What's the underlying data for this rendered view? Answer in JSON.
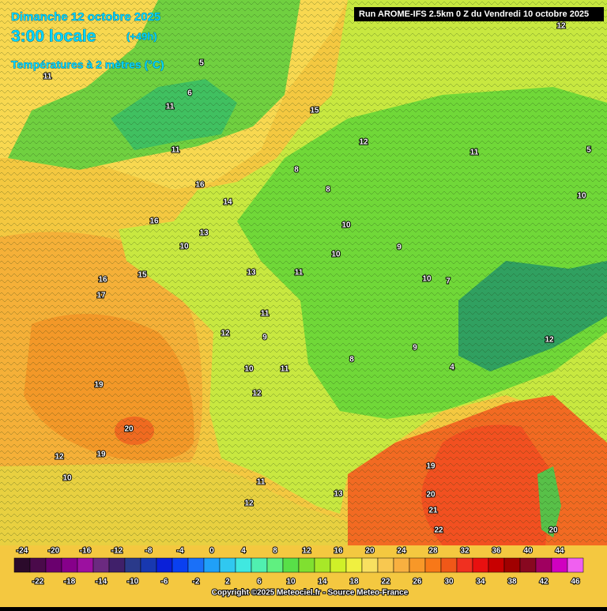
{
  "header": {
    "date": "Dimanche 12 octobre 2025",
    "time": "3:00 locale",
    "lead": "(+49h)",
    "parameter": "Températures à 2 mètres (°C)",
    "run": "Run AROME-IFS 2.5km 0 Z du Vendredi 10 octobre 2025"
  },
  "map": {
    "contour_labels": [
      11,
      5,
      6,
      11,
      15,
      11,
      12,
      16,
      14,
      16,
      13,
      10,
      16,
      17,
      15,
      8,
      8,
      10,
      10,
      9,
      11,
      13,
      10,
      7,
      11,
      12,
      9,
      10,
      11,
      19,
      12,
      20,
      12,
      19,
      10,
      11,
      12,
      13,
      19,
      20,
      21,
      22,
      20,
      10,
      11,
      5,
      12,
      9,
      8,
      4,
      12
    ]
  },
  "legend": {
    "top_labels": [
      -24,
      -20,
      -16,
      -12,
      -8,
      -4,
      0,
      4,
      8,
      12,
      16,
      20,
      24,
      28,
      32,
      36,
      40,
      44
    ],
    "bottom_labels": [
      -22,
      -18,
      -14,
      -10,
      -6,
      -2,
      2,
      6,
      10,
      14,
      18,
      22,
      26,
      30,
      34,
      38,
      42,
      46
    ],
    "colors": [
      "#2b0a2b",
      "#4a0a4a",
      "#6a006e",
      "#86008a",
      "#9c10a0",
      "#6b2a80",
      "#40206a",
      "#2a3a8a",
      "#1838b0",
      "#0a20d8",
      "#0a40f0",
      "#1a70f8",
      "#20a0f8",
      "#30c8f0",
      "#40e8e0",
      "#50f0b0",
      "#60f080",
      "#58e048",
      "#80e030",
      "#a8e828",
      "#d0f028",
      "#f0f040",
      "#f8e060",
      "#f8c850",
      "#f8b040",
      "#f89828",
      "#f87818",
      "#f05818",
      "#f03020",
      "#e81010",
      "#c80000",
      "#a00000",
      "#880820",
      "#a00060",
      "#d000c0",
      "#f060f0"
    ]
  },
  "footer": {
    "copyright": "Copyright ©2025 Meteociel.fr - Source Meteo-France"
  }
}
